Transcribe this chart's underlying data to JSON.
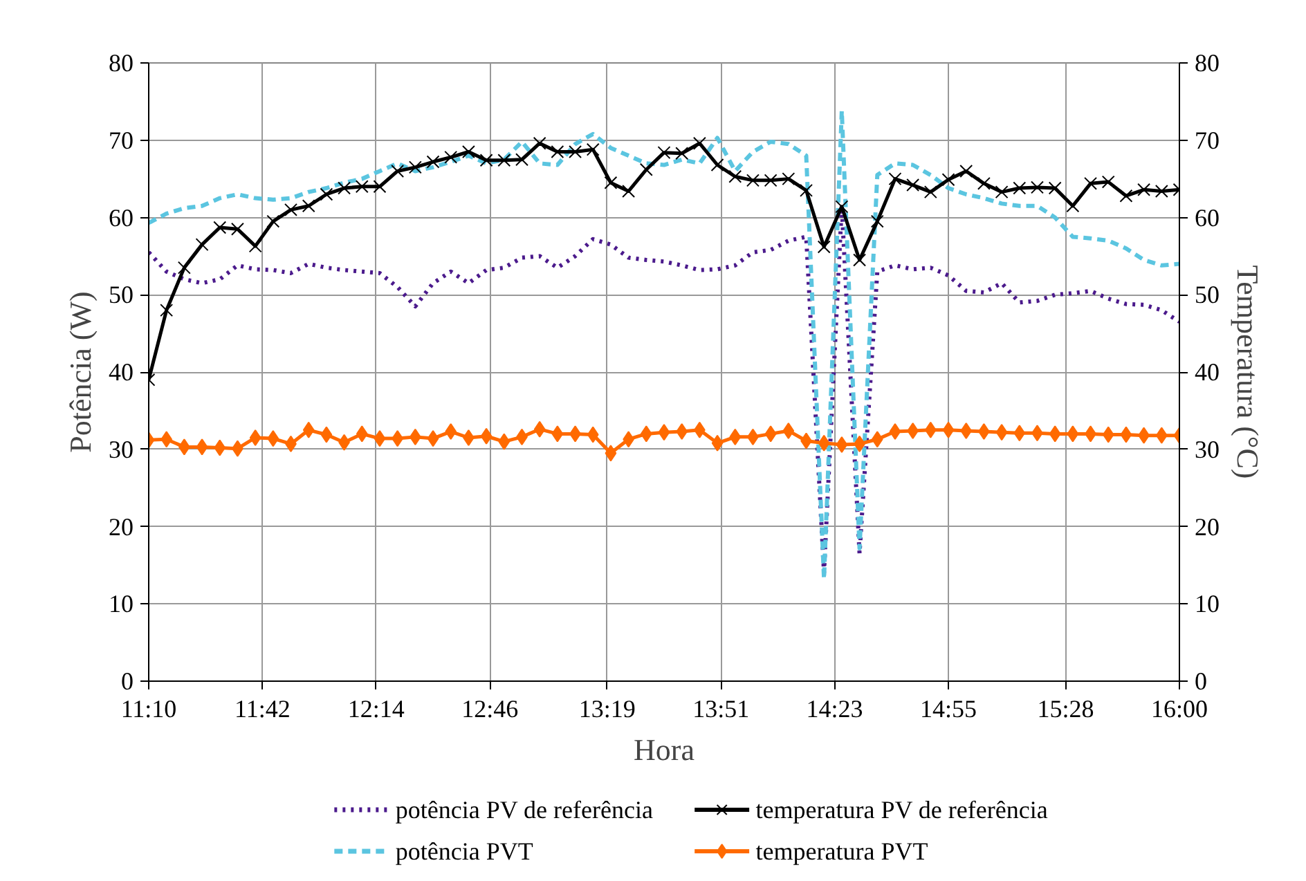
{
  "chart_data": {
    "type": "line",
    "xlabel": "Hora",
    "ylabel": "Potência (W)",
    "y2label": "Temperatura (°C)",
    "x": [
      11.1667,
      11.25,
      11.3333,
      11.4167,
      11.5,
      11.5833,
      11.6667,
      11.75,
      11.8333,
      11.9167,
      12.0,
      12.0833,
      12.1667,
      12.25,
      12.3333,
      12.4167,
      12.5,
      12.5833,
      12.6667,
      12.75,
      12.8333,
      12.9167,
      13.0,
      13.0833,
      13.1667,
      13.25,
      13.3333,
      13.4167,
      13.5,
      13.5833,
      13.6667,
      13.75,
      13.8333,
      13.9167,
      14.0,
      14.0833,
      14.1667,
      14.25,
      14.3333,
      14.4167,
      14.5,
      14.5833,
      14.6667,
      14.75,
      14.8333,
      14.9167,
      15.0,
      15.0833,
      15.1667,
      15.25,
      15.3333,
      15.4167,
      15.5,
      15.5833,
      15.6667,
      15.75,
      15.8333,
      15.9167,
      16.0
    ],
    "series": [
      {
        "name": "potência PV de referência",
        "color": "#4b1a8c",
        "line_style": "dotted",
        "marker": "none",
        "values": [
          55.5,
          53,
          52,
          51.5,
          52,
          53.8,
          53.3,
          53.2,
          52.8,
          54,
          53.5,
          53.2,
          53,
          52.8,
          51,
          48.5,
          51.5,
          53,
          51.5,
          53.2,
          53.5,
          54.8,
          55,
          53.5,
          55,
          57.2,
          56.5,
          54.8,
          54.5,
          54.3,
          53.8,
          53.2,
          53.3,
          53.8,
          55.5,
          55.8,
          57,
          57.5,
          14,
          61.5,
          16.5,
          53,
          53.8,
          53.3,
          53.5,
          52.5,
          50.5,
          50.3,
          51.5,
          49,
          49.2,
          50,
          50.2,
          50.5,
          49.5,
          48.8,
          48.7,
          48,
          46.5
        ]
      },
      {
        "name": "potência PVT",
        "color": "#5bc5e0",
        "line_style": "dashed",
        "marker": "none",
        "values": [
          59.3,
          60.5,
          61.2,
          61.5,
          62.5,
          63,
          62.5,
          62.3,
          62.5,
          63.3,
          63.8,
          64.5,
          65,
          66,
          67,
          66,
          66.5,
          67.2,
          68,
          67,
          67.5,
          69.8,
          67,
          66.8,
          69.5,
          70.8,
          69,
          68,
          67,
          66.8,
          67.5,
          67,
          70.3,
          66,
          68.5,
          69.8,
          69.5,
          68,
          13.2,
          73.8,
          17.2,
          65.5,
          67,
          66.8,
          65.5,
          63.8,
          63,
          62.5,
          61.8,
          61.5,
          61.5,
          60,
          57.5,
          57.3,
          57,
          56,
          54.5,
          53.8,
          54
        ]
      },
      {
        "name": "temperatura PV de referência",
        "color": "#000000",
        "line_style": "solid",
        "marker": "cross",
        "values": [
          39,
          48,
          53.5,
          56.5,
          58.7,
          58.5,
          56.3,
          59.5,
          61,
          61.5,
          63,
          63.8,
          64,
          64,
          66,
          66.5,
          67.2,
          67.8,
          68.5,
          67.4,
          67.4,
          67.5,
          69.6,
          68.5,
          68.5,
          68.8,
          64.5,
          63.4,
          66.2,
          68.4,
          68.3,
          69.6,
          66.8,
          65.3,
          64.8,
          64.8,
          65,
          63.5,
          56.2,
          61.4,
          54.5,
          59.5,
          65,
          64.2,
          63.3,
          64.9,
          66,
          64.4,
          63.3,
          63.8,
          63.9,
          63.8,
          61.5,
          64.4,
          64.6,
          62.8,
          63.6,
          63.4,
          63.6
        ]
      },
      {
        "name": "temperatura PVT",
        "color": "#ff6a00",
        "line_style": "solid",
        "marker": "diamond",
        "values": [
          31.2,
          31.3,
          30.3,
          30.3,
          30.2,
          30.1,
          31.5,
          31.4,
          30.7,
          32.5,
          31.9,
          30.9,
          32,
          31.4,
          31.4,
          31.6,
          31.4,
          32.3,
          31.5,
          31.7,
          31,
          31.6,
          32.6,
          32,
          32,
          31.9,
          29.5,
          31.3,
          32,
          32.2,
          32.3,
          32.5,
          30.8,
          31.6,
          31.6,
          32,
          32.4,
          31.1,
          30.8,
          30.6,
          30.7,
          31.3,
          32.3,
          32.4,
          32.5,
          32.5,
          32.4,
          32.3,
          32.2,
          32.1,
          32.1,
          32,
          32,
          32,
          31.9,
          31.9,
          31.8,
          31.8,
          31.8
        ]
      }
    ],
    "xlim": [
      11.1667,
      16.0
    ],
    "xticks": [
      {
        "value": 11.1667,
        "label": "11:10"
      },
      {
        "value": 11.7,
        "label": "11:42"
      },
      {
        "value": 12.2333,
        "label": "12:14"
      },
      {
        "value": 12.7667,
        "label": "12:46"
      },
      {
        "value": 13.3167,
        "label": "13:19"
      },
      {
        "value": 13.85,
        "label": "13:51"
      },
      {
        "value": 14.3833,
        "label": "14:23"
      },
      {
        "value": 14.9167,
        "label": "14:55"
      },
      {
        "value": 15.4667,
        "label": "15:28"
      },
      {
        "value": 16.0,
        "label": "16:00"
      }
    ],
    "ylim": [
      0,
      80
    ],
    "yticks": [
      0,
      10,
      20,
      30,
      40,
      50,
      60,
      70,
      80
    ],
    "y2lim": [
      0,
      80
    ],
    "y2ticks": [
      0,
      10,
      20,
      30,
      40,
      50,
      60,
      70,
      80
    ],
    "grid": true,
    "legend": "bottom"
  }
}
